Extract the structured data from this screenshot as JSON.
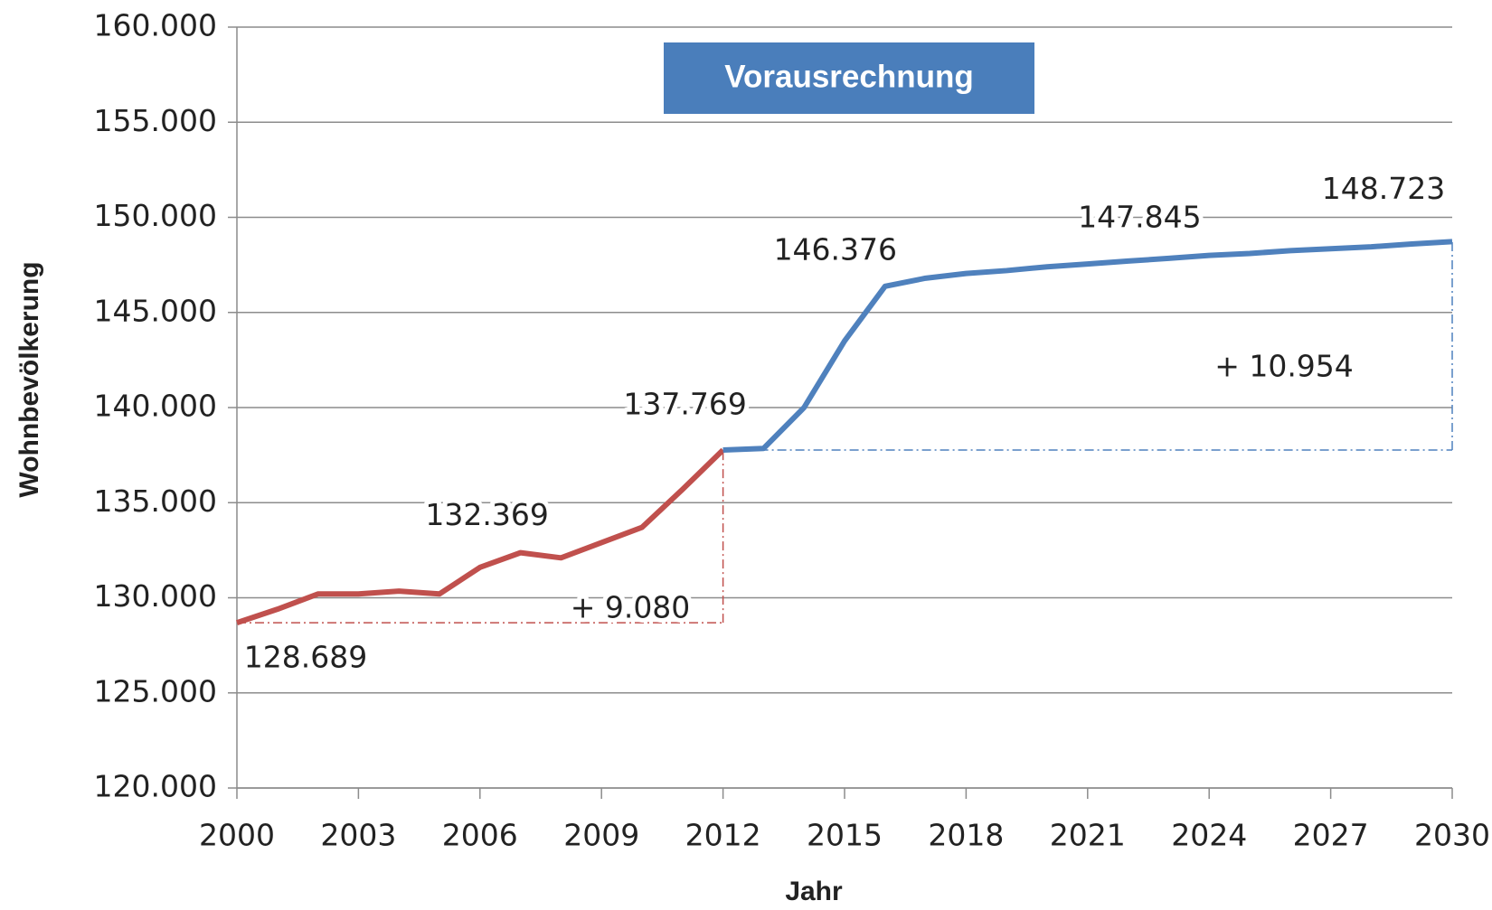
{
  "chart_data": {
    "type": "line",
    "x_label": "Jahr",
    "y_label": "Wohnbevölkerung",
    "annotations": [
      "Vorausrechnung",
      "+ 9.080",
      "+ 10.954"
    ],
    "xlim": [
      2000,
      2030
    ],
    "xticks": [
      2000,
      2003,
      2006,
      2009,
      2012,
      2015,
      2018,
      2021,
      2024,
      2027,
      2030
    ],
    "ylim": [
      120000,
      160000
    ],
    "yticks": [
      {
        "value": 120000,
        "label": "120.000"
      },
      {
        "value": 125000,
        "label": "125.000"
      },
      {
        "value": 130000,
        "label": "130.000"
      },
      {
        "value": 135000,
        "label": "135.000"
      },
      {
        "value": 140000,
        "label": "140.000"
      },
      {
        "value": 145000,
        "label": "145.000"
      },
      {
        "value": 150000,
        "label": "150.000"
      },
      {
        "value": 155000,
        "label": "155.000"
      },
      {
        "value": 160000,
        "label": "160.000"
      }
    ],
    "grid": true,
    "series": [
      {
        "color": "#c0504d",
        "x": [
          2000,
          2001,
          2002,
          2003,
          2004,
          2005,
          2006,
          2007,
          2008,
          2009,
          2010,
          2011,
          2012
        ],
        "values": [
          128689,
          129400,
          130200,
          130200,
          130350,
          130200,
          131600,
          132369,
          132100,
          132900,
          133700,
          135700,
          137769
        ],
        "value_labels": [
          "128.689",
          null,
          null,
          null,
          null,
          null,
          null,
          "132.369",
          null,
          null,
          null,
          null,
          "137.769"
        ]
      },
      {
        "color": "#4f81bd",
        "x": [
          2012,
          2013,
          2014,
          2015,
          2016,
          2017,
          2018,
          2019,
          2020,
          2021,
          2022,
          2023,
          2024,
          2025,
          2026,
          2027,
          2028,
          2029,
          2030
        ],
        "values": [
          137769,
          137850,
          140000,
          143500,
          146376,
          146800,
          147050,
          147200,
          147400,
          147550,
          147700,
          147845,
          148000,
          148100,
          148250,
          148350,
          148450,
          148600,
          148723
        ],
        "value_labels": [
          null,
          null,
          null,
          null,
          "146.376",
          null,
          null,
          null,
          null,
          null,
          null,
          "147.845",
          null,
          null,
          null,
          null,
          null,
          null,
          "148.723"
        ]
      }
    ]
  }
}
